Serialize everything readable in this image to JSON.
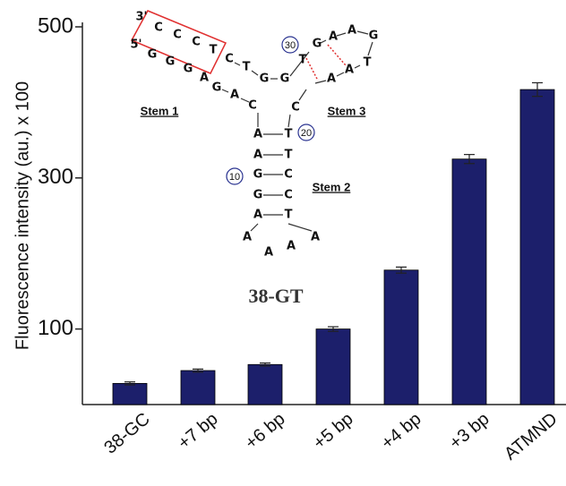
{
  "chart_data": {
    "type": "bar",
    "y_label": "Fluorescence intensity (au.) x 100",
    "categories": [
      "38-GC",
      "+7 bp",
      "+6 bp",
      "+5 bp",
      "+4 bp",
      "+3 bp",
      "ATMND"
    ],
    "values": [
      28,
      45,
      53,
      100,
      178,
      325,
      417
    ],
    "errors": [
      2,
      2,
      2,
      3,
      4,
      6,
      9
    ],
    "color": "#1c1f6b",
    "ylim": [
      0,
      500
    ],
    "yticks": [
      100,
      300,
      500
    ],
    "inset": {
      "title": "38-GT",
      "letters": [
        "3'",
        "C",
        "C",
        "C",
        "T",
        "5'",
        "G",
        "G",
        "G",
        "A",
        "G",
        "A",
        "C",
        "C",
        "T",
        "G",
        "G",
        "T",
        "G",
        "A",
        "A",
        "G",
        "T",
        "A",
        "A",
        "C",
        "A",
        "A",
        "G",
        "G",
        "A",
        "T",
        "T",
        "C",
        "C",
        "T",
        "A",
        "A",
        "A",
        "A"
      ],
      "numbers": [
        "30",
        "20",
        "10"
      ],
      "stems": [
        "Stem 1",
        "Stem 3",
        "Stem 2"
      ]
    }
  }
}
